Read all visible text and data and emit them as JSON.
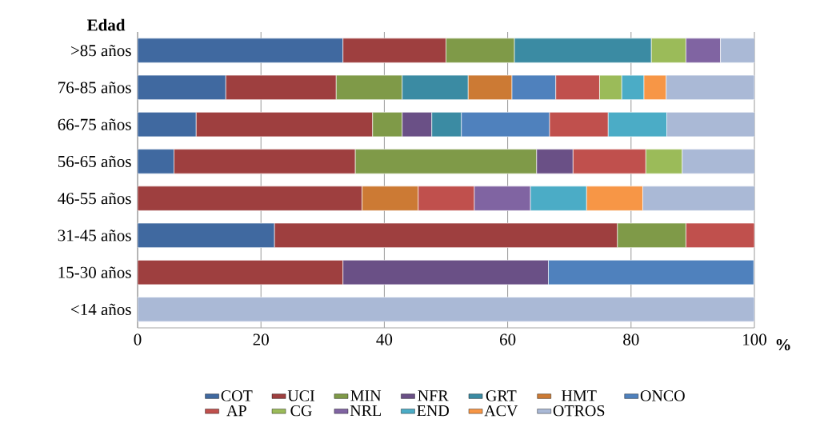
{
  "chart_data": {
    "type": "bar",
    "orientation": "horizontal",
    "stacked": true,
    "ylabel": "Edad",
    "xlabel": "%",
    "categories": [
      ">85 años",
      "76-85 años",
      "66-75 años",
      "56-65 años",
      "46-55 años",
      "31-45 años",
      "15-30 años",
      "<14 años"
    ],
    "xlim": [
      0,
      100
    ],
    "xticks": [
      0,
      20,
      40,
      60,
      80,
      100
    ],
    "grid": "x",
    "legend": "bottom",
    "series": [
      {
        "name": "COT",
        "color": "#4069a0",
        "values": [
          33.3,
          14.3,
          9.5,
          5.9,
          null,
          22.2,
          null,
          null
        ]
      },
      {
        "name": "UCI",
        "color": "#9e3f3f",
        "values": [
          16.7,
          17.9,
          28.6,
          29.4,
          36.4,
          55.6,
          33.3,
          null
        ]
      },
      {
        "name": "MIN",
        "color": "#7f9a48",
        "values": [
          11.1,
          10.7,
          4.8,
          29.4,
          null,
          11.1,
          null,
          null
        ]
      },
      {
        "name": "NFR",
        "color": "#6a5086",
        "values": [
          null,
          null,
          4.8,
          5.9,
          null,
          null,
          33.3,
          null
        ]
      },
      {
        "name": "GRT",
        "color": "#3b8ba3",
        "values": [
          22.2,
          10.7,
          4.8,
          null,
          null,
          null,
          null,
          null
        ]
      },
      {
        "name": "HMT",
        "color": "#cc7a34",
        "values": [
          null,
          7.1,
          null,
          null,
          9.1,
          null,
          null,
          null
        ]
      },
      {
        "name": "ONCO",
        "color": "#4f81bd",
        "values": [
          null,
          7.1,
          14.3,
          null,
          null,
          null,
          33.3,
          null
        ]
      },
      {
        "name": "AP",
        "color": "#c0504d",
        "values": [
          null,
          7.1,
          9.5,
          11.8,
          9.1,
          11.1,
          null,
          null
        ]
      },
      {
        "name": "CG",
        "color": "#9bbb59",
        "values": [
          5.6,
          3.6,
          null,
          5.9,
          null,
          null,
          null,
          null
        ]
      },
      {
        "name": "NRL",
        "color": "#8064a2",
        "values": [
          5.6,
          null,
          null,
          null,
          9.1,
          null,
          null,
          null
        ]
      },
      {
        "name": "END",
        "color": "#4bacc6",
        "values": [
          null,
          3.6,
          9.5,
          null,
          9.1,
          null,
          null,
          null
        ]
      },
      {
        "name": "ACV",
        "color": "#f79646",
        "values": [
          null,
          3.6,
          null,
          null,
          9.1,
          null,
          null,
          null
        ]
      },
      {
        "name": "OTROS",
        "color": "#aab9d6",
        "values": [
          5.6,
          14.3,
          14.3,
          11.8,
          18.2,
          null,
          null,
          100
        ]
      }
    ]
  }
}
